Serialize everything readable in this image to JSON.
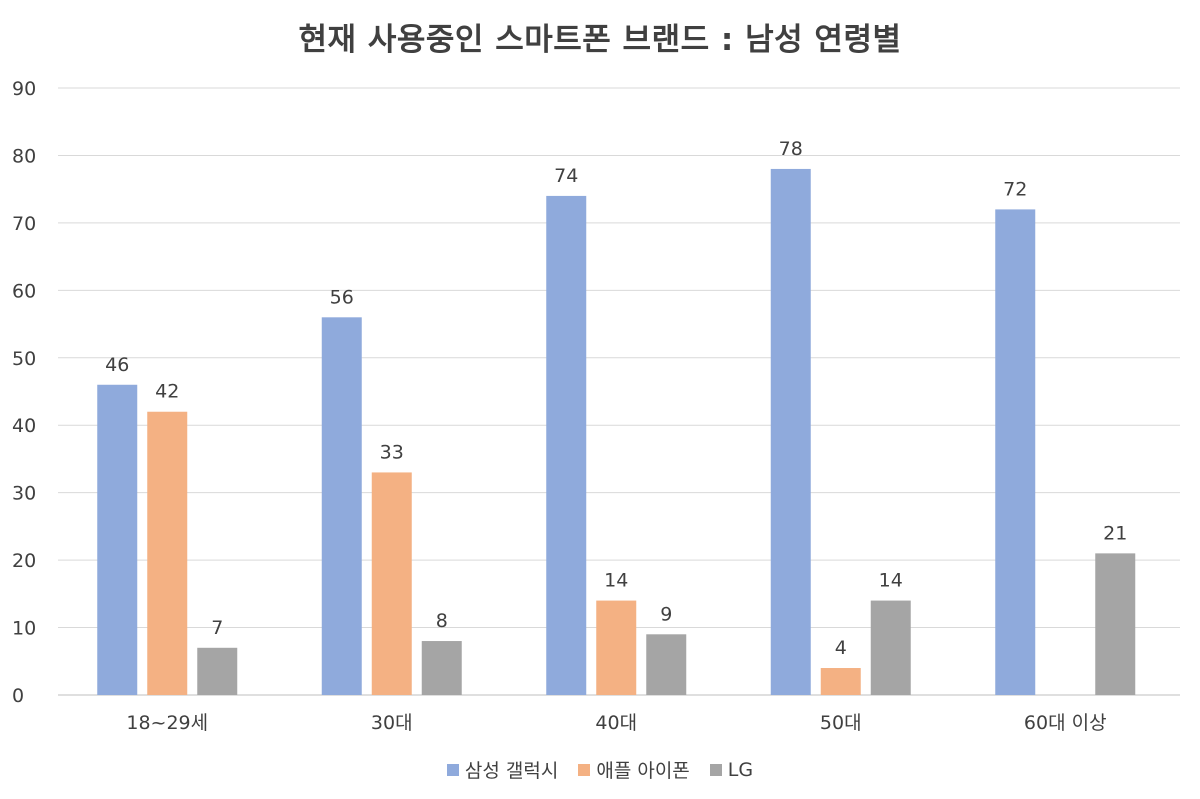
{
  "chart_data": {
    "type": "bar",
    "title": "현재 사용중인 스마트폰 브랜드 : 남성 연령별",
    "categories": [
      "18~29세",
      "30대",
      "40대",
      "50대",
      "60대 이상"
    ],
    "series": [
      {
        "name": "삼성 갤럭시",
        "color": "#8faadc",
        "values": [
          46,
          56,
          74,
          78,
          72
        ]
      },
      {
        "name": "애플 아이폰",
        "color": "#f4b183",
        "values": [
          42,
          33,
          14,
          4,
          null
        ]
      },
      {
        "name": "LG",
        "color": "#a5a5a5",
        "values": [
          7,
          8,
          9,
          14,
          21
        ]
      }
    ],
    "yticks": [
      0,
      10,
      20,
      30,
      40,
      50,
      60,
      70,
      80,
      90
    ],
    "ylim": [
      0,
      90
    ],
    "grid": true,
    "legend": "bottom"
  }
}
